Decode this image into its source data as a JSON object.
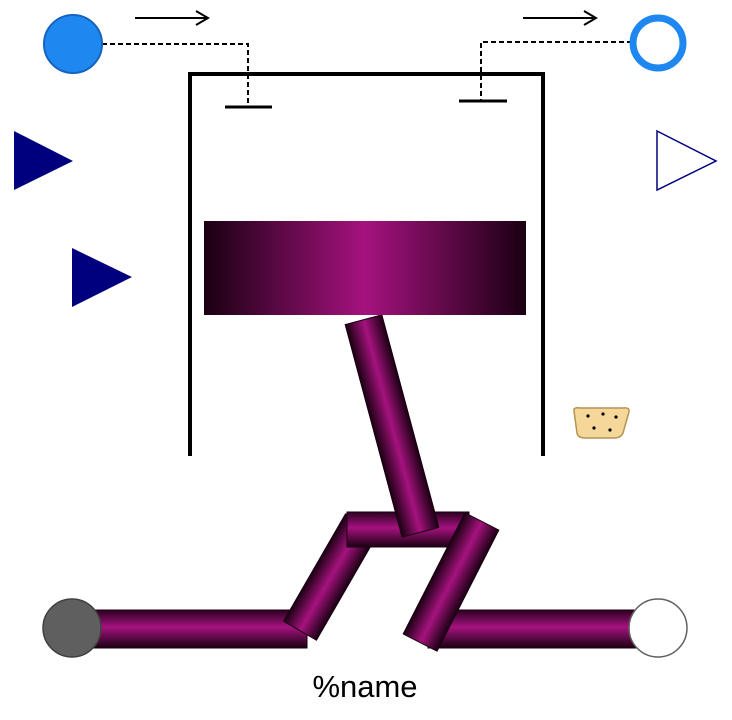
{
  "diagram": {
    "instance_name": "%name",
    "colors": {
      "port_fill_a": "#1e88f0",
      "port_stroke_a": "#1565c0",
      "port_fill_b": "#ffffff",
      "port_stroke_b": "#1e88f0",
      "signal_input": "#00007f",
      "signal_output_stroke": "#00007f",
      "flange_a": "#5f5f5f",
      "flange_b": "#ffffff",
      "cylinder_wall": "#000000",
      "mechanism_dark": "#1a0012",
      "mechanism_mid": "#7a0a5e",
      "mechanism_light": "#a5127e",
      "heat_port_fill": "#f6d79a",
      "heat_port_stroke": "#b59351"
    },
    "icons": {
      "fluid_port_a": "filled-circle",
      "fluid_port_b": "hollow-circle",
      "flow_arrow_in": "right-arrow",
      "flow_arrow_out": "right-arrow",
      "signal_input_1": "filled-triangle",
      "signal_input_2": "filled-triangle",
      "signal_output": "hollow-triangle",
      "heat_port": "dotted-blob",
      "flange_a": "grey-circle",
      "flange_b": "white-circle"
    }
  }
}
